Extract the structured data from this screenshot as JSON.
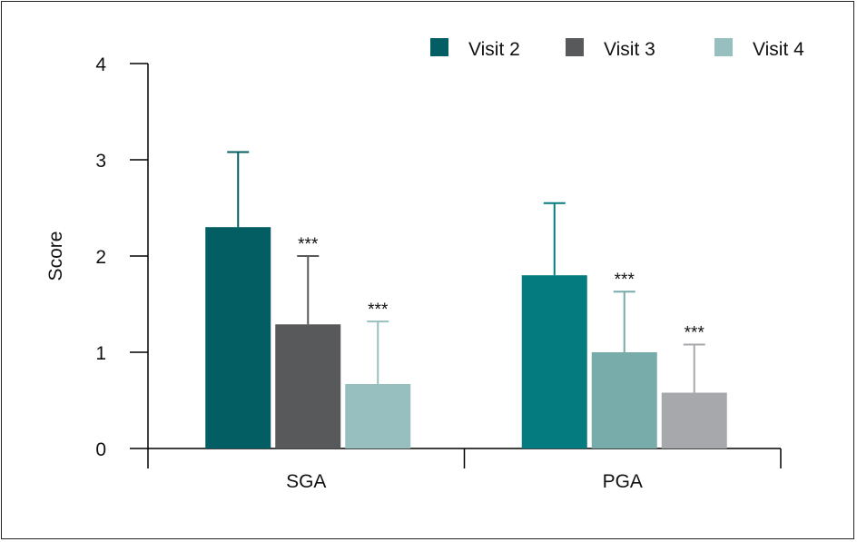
{
  "chart_data": {
    "type": "bar",
    "title": "",
    "xlabel": "",
    "ylabel": "Score",
    "ylim": [
      0,
      4
    ],
    "yticks": [
      "0",
      "1",
      "2",
      "3",
      "4"
    ],
    "grid": false,
    "legend_position": "top-right",
    "categories": [
      "SGA",
      "PGA"
    ],
    "series": [
      {
        "name": "Visit 2",
        "legend_color": "#035e63",
        "colors": [
          "#035e63",
          "#047b7e"
        ],
        "values": [
          2.3,
          1.8
        ],
        "error_upper": [
          3.08,
          2.55
        ],
        "annotations": [
          "",
          ""
        ]
      },
      {
        "name": "Visit 3",
        "legend_color": "#58595b",
        "colors": [
          "#58595b",
          "#78acab"
        ],
        "values": [
          1.29,
          1.0
        ],
        "error_upper": [
          2.0,
          1.63
        ],
        "annotations": [
          "***",
          "***"
        ]
      },
      {
        "name": "Visit 4",
        "legend_color": "#97bfbf",
        "colors": [
          "#97bfbf",
          "#a7a8ab"
        ],
        "values": [
          0.67,
          0.58
        ],
        "error_upper": [
          1.32,
          1.08
        ],
        "annotations": [
          "***",
          "***"
        ]
      }
    ]
  }
}
